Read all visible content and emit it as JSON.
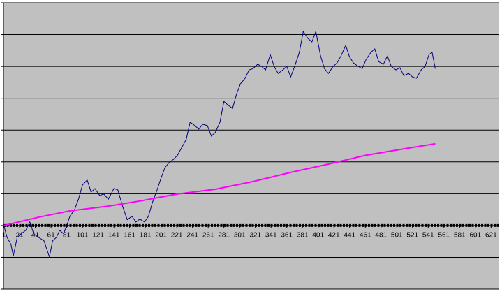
{
  "chart_data": {
    "type": "line",
    "xlim": [
      0.5,
      630.5
    ],
    "ylim": [
      -2,
      7
    ],
    "xticks": [
      1,
      21,
      41,
      61,
      81,
      101,
      121,
      141,
      161,
      181,
      201,
      221,
      241,
      261,
      281,
      301,
      321,
      341,
      361,
      381,
      401,
      421,
      441,
      461,
      481,
      501,
      521,
      541,
      561,
      581,
      601,
      621
    ],
    "yticks": [
      -2,
      -1,
      0,
      1,
      2,
      3,
      4,
      5,
      6,
      7
    ],
    "grid": true,
    "background": "#c0c0c0",
    "series": [
      {
        "color": "#000080",
        "x": [
          1,
          5,
          10,
          13,
          18,
          23,
          29,
          34,
          39,
          45,
          52,
          59,
          63,
          68,
          72,
          77,
          82,
          85,
          91,
          96,
          101,
          107,
          112,
          117,
          123,
          128,
          134,
          141,
          146,
          152,
          158,
          164,
          169,
          174,
          180,
          185,
          190,
          196,
          201,
          206,
          212,
          217,
          222,
          228,
          233,
          238,
          244,
          249,
          254,
          260,
          265,
          270,
          276,
          281,
          286,
          292,
          297,
          302,
          308,
          313,
          318,
          324,
          329,
          334,
          340,
          345,
          350,
          356,
          361,
          366,
          372,
          377,
          382,
          388,
          393,
          398,
          404,
          409,
          414,
          420,
          425,
          430,
          436,
          441,
          446,
          452,
          457,
          462,
          468,
          473,
          478,
          484,
          489,
          494,
          500,
          505,
          510,
          516,
          521,
          526,
          532,
          537,
          542,
          546,
          550
        ],
        "values": [
          0,
          -0.37,
          -0.59,
          -0.96,
          -0.37,
          -0.26,
          -0.15,
          0.11,
          -0.26,
          -0.37,
          -0.48,
          -0.99,
          -0.48,
          -0.37,
          -0.15,
          -0.26,
          0.07,
          0.29,
          0.5,
          0.83,
          1.27,
          1.43,
          1.05,
          1.16,
          0.94,
          0.99,
          0.83,
          1.16,
          1.12,
          0.61,
          0.18,
          0.29,
          0.11,
          0.2,
          0.11,
          0.29,
          0.72,
          1.12,
          1.49,
          1.82,
          2.0,
          2.08,
          2.21,
          2.48,
          2.7,
          3.25,
          3.14,
          3.03,
          3.18,
          3.14,
          2.81,
          2.92,
          3.25,
          3.9,
          3.79,
          3.68,
          4.12,
          4.45,
          4.63,
          4.89,
          4.93,
          5.07,
          5.0,
          4.89,
          5.37,
          5.0,
          4.78,
          4.89,
          5.0,
          4.67,
          5.07,
          5.44,
          6.1,
          5.88,
          5.77,
          6.1,
          5.33,
          4.93,
          4.78,
          5.0,
          5.11,
          5.33,
          5.66,
          5.29,
          5.11,
          5.0,
          4.93,
          5.22,
          5.44,
          5.55,
          5.15,
          5.07,
          5.33,
          5.0,
          4.89,
          4.96,
          4.71,
          4.78,
          4.67,
          4.63,
          4.89,
          5.0,
          5.37,
          5.44,
          4.93
        ]
      },
      {
        "color": "#ff00ff",
        "x": [
          1,
          45,
          85,
          134,
          174,
          222,
          270,
          318,
          366,
          414,
          462,
          510,
          550
        ],
        "values": [
          0,
          0.26,
          0.46,
          0.61,
          0.77,
          0.99,
          1.14,
          1.38,
          1.67,
          1.93,
          2.21,
          2.41,
          2.57
        ]
      }
    ]
  }
}
